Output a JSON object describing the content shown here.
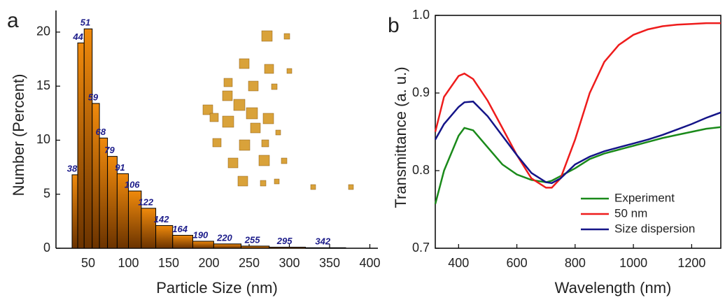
{
  "chart_data": [
    {
      "type": "histogram",
      "panel_label": "a",
      "x_label": "Particle Size (nm)",
      "y_label": "Number (Percent)",
      "bins": [
        30,
        37,
        45,
        55,
        64,
        74,
        86,
        100,
        116,
        134,
        155,
        180,
        206,
        240,
        275,
        320,
        370
      ],
      "values": [
        6.8,
        19.0,
        20.3,
        13.4,
        10.2,
        8.5,
        6.9,
        5.3,
        3.7,
        2.1,
        1.2,
        0.65,
        0.4,
        0.2,
        0.1,
        0.05
      ],
      "bar_labels": [
        38,
        44,
        51,
        59,
        68,
        79,
        91,
        106,
        122,
        142,
        164,
        190,
        220,
        255,
        295,
        342
      ],
      "color": "#f08a0c",
      "xlim": [
        10,
        410
      ],
      "xticks": [
        50,
        100,
        150,
        200,
        250,
        300,
        350,
        400
      ],
      "ylim": [
        0,
        22
      ],
      "yticks": [
        0,
        5,
        10,
        15,
        20
      ]
    },
    {
      "type": "line",
      "panel_label": "b",
      "x_label": "Wavelength (nm)",
      "y_label": "Transmittance (a. u.)",
      "x": [
        320,
        350,
        400,
        420,
        450,
        500,
        550,
        600,
        650,
        700,
        720,
        750,
        800,
        850,
        900,
        950,
        1000,
        1050,
        1100,
        1150,
        1200,
        1250,
        1300
      ],
      "series": [
        {
          "name": "Experiment",
          "color": "#1a8a1a",
          "values": [
            0.757,
            0.8,
            0.845,
            0.855,
            0.852,
            0.83,
            0.808,
            0.795,
            0.788,
            0.785,
            0.787,
            0.793,
            0.803,
            0.815,
            0.822,
            0.827,
            0.832,
            0.837,
            0.842,
            0.846,
            0.85,
            0.854,
            0.856
          ]
        },
        {
          "name": "50 nm",
          "color": "#ee1c1c",
          "values": [
            0.85,
            0.895,
            0.922,
            0.925,
            0.918,
            0.89,
            0.855,
            0.82,
            0.79,
            0.778,
            0.778,
            0.79,
            0.84,
            0.9,
            0.94,
            0.962,
            0.975,
            0.982,
            0.986,
            0.988,
            0.989,
            0.99,
            0.99
          ]
        },
        {
          "name": "Size dispersion",
          "color": "#141488",
          "values": [
            0.84,
            0.86,
            0.882,
            0.888,
            0.889,
            0.87,
            0.845,
            0.82,
            0.797,
            0.785,
            0.784,
            0.79,
            0.808,
            0.818,
            0.825,
            0.83,
            0.835,
            0.84,
            0.846,
            0.853,
            0.86,
            0.868,
            0.875
          ]
        }
      ],
      "xlim": [
        320,
        1300
      ],
      "xticks": [
        400,
        600,
        800,
        1000,
        1200
      ],
      "ylim": [
        0.7,
        1.0
      ],
      "yticks": [
        0.7,
        0.8,
        0.9,
        {
          "value": 1.0,
          "label": "1.0"
        }
      ],
      "legend": "lower right"
    }
  ]
}
